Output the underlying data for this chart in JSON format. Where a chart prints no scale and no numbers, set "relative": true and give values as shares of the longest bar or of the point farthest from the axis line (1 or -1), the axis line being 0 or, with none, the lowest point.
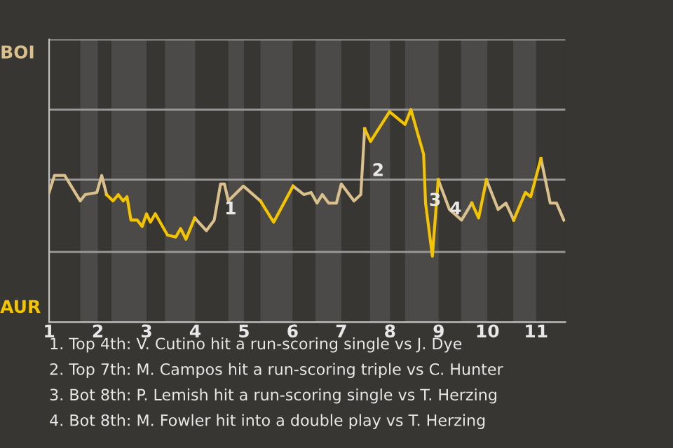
{
  "chart_data": {
    "type": "line",
    "relative": true,
    "x": [
      1.0,
      1.11,
      1.32,
      1.64,
      1.74,
      1.98,
      2.08,
      2.18,
      2.31,
      2.42,
      2.52,
      2.6,
      2.68,
      2.81,
      2.91,
      3.0,
      3.08,
      3.18,
      3.43,
      3.6,
      3.7,
      3.81,
      3.99,
      4.23,
      4.39,
      4.52,
      4.6,
      4.68,
      4.99,
      5.34,
      5.61,
      6.01,
      6.23,
      6.38,
      6.5,
      6.61,
      6.74,
      6.9,
      7.0,
      7.26,
      7.4,
      7.48,
      7.6,
      7.99,
      8.31,
      8.43,
      8.54,
      8.69,
      8.73,
      8.87,
      8.99,
      9.22,
      9.47,
      9.68,
      9.82,
      9.98,
      10.22,
      10.38,
      10.54,
      10.78,
      10.89,
      11.1,
      11.29,
      11.42,
      11.57
    ],
    "series": [
      {
        "color": "#d9c08c",
        "values": [
          0.61,
          0.69,
          0.69,
          0.57,
          0.6,
          0.61,
          0.69,
          0.6,
          null,
          null,
          null,
          null,
          null,
          null,
          null,
          null,
          null,
          null,
          null,
          null,
          null,
          null,
          0.49,
          0.43,
          0.48,
          0.65,
          0.65,
          0.57,
          0.64,
          0.57,
          null,
          0.64,
          0.6,
          0.61,
          0.56,
          0.6,
          0.56,
          0.56,
          0.65,
          0.57,
          0.6,
          0.91,
          null,
          null,
          null,
          null,
          null,
          null,
          null,
          null,
          0.67,
          0.53,
          0.48,
          0.56,
          null,
          0.67,
          0.53,
          0.56,
          0.48,
          null,
          null,
          0.77,
          0.56,
          0.56,
          0.48
        ]
      },
      {
        "color": "#f5c400",
        "values": [
          null,
          null,
          null,
          null,
          null,
          null,
          null,
          0.6,
          0.57,
          0.6,
          0.57,
          0.59,
          0.48,
          0.48,
          0.45,
          0.51,
          0.47,
          0.51,
          0.41,
          0.4,
          0.44,
          0.39,
          0.49,
          null,
          null,
          null,
          null,
          null,
          null,
          0.57,
          0.47,
          0.64,
          null,
          null,
          null,
          null,
          null,
          null,
          null,
          null,
          null,
          0.91,
          0.85,
          0.99,
          0.93,
          1.0,
          0.91,
          0.79,
          0.56,
          0.31,
          0.67,
          null,
          null,
          0.56,
          0.49,
          0.67,
          null,
          null,
          0.48,
          0.61,
          0.59,
          0.77,
          null,
          null,
          null
        ]
      }
    ],
    "xlim": [
      1,
      11.6
    ],
    "xticks": [
      1,
      2,
      3,
      4,
      5,
      6,
      7,
      8,
      9,
      10,
      11
    ],
    "marker": "none",
    "line_style": "solid",
    "ref_lines": [
      {
        "axis": "y",
        "value": 0.33,
        "color": "#9a9a9a"
      },
      {
        "axis": "y",
        "value": 0.67,
        "color": "#9a9a9a"
      },
      {
        "axis": "y",
        "value": 1,
        "color": "#9a9a9a"
      },
      {
        "axis": "y",
        "value": 1.33,
        "color": "#9a9a9a"
      }
    ],
    "bands": [
      {
        "axis": "x",
        "from": 1.64,
        "to": 2.0,
        "color": "#4b4a48"
      },
      {
        "axis": "x",
        "from": 2.28,
        "to": 3.0,
        "color": "#4b4a48"
      },
      {
        "axis": "x",
        "from": 3.38,
        "to": 4.0,
        "color": "#4b4a48"
      },
      {
        "axis": "x",
        "from": 4.68,
        "to": 5.0,
        "color": "#4b4a48"
      },
      {
        "axis": "x",
        "from": 5.34,
        "to": 6.0,
        "color": "#4b4a48"
      },
      {
        "axis": "x",
        "from": 6.47,
        "to": 7.0,
        "color": "#4b4a48"
      },
      {
        "axis": "x",
        "from": 7.59,
        "to": 8.0,
        "color": "#4b4a48"
      },
      {
        "axis": "x",
        "from": 8.31,
        "to": 9.0,
        "color": "#4b4a48"
      },
      {
        "axis": "x",
        "from": 9.46,
        "to": 10.0,
        "color": "#4b4a48"
      },
      {
        "axis": "x",
        "from": 10.53,
        "to": 11.0,
        "color": "#4b4a48"
      }
    ],
    "annotations": [
      {
        "text": "1",
        "x": 4.6,
        "y": 0.53
      },
      {
        "text": "2",
        "x": 7.63,
        "y": 0.71
      },
      {
        "text": "3",
        "x": 8.8,
        "y": 0.57
      },
      {
        "text": "4",
        "x": 9.22,
        "y": 0.53
      },
      "BOI",
      "AUR",
      "1. Top 4th: V. Cutino hit a run-scoring single vs J. Dye",
      "2. Top 7th: M. Campos hit a run-scoring triple vs C. Hunter",
      "3. Bot 8th: P. Lemish hit a run-scoring single vs T. Herzing",
      "4. Bot 8th: M. Fowler hit into a double play vs T. Herzing"
    ]
  }
}
